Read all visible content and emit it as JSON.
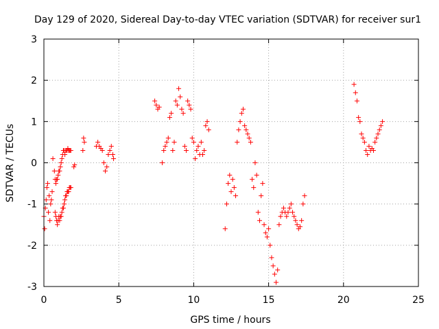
{
  "chart_data": {
    "type": "scatter",
    "title": "Day 129 of 2020, Sidereal Day-to-day VTEC variation (SDTVAR) for receiver sur1",
    "xlabel": "GPS time / hours",
    "ylabel": "SDTVAR / TECUs",
    "xlim": [
      0,
      25
    ],
    "ylim": [
      -3,
      3
    ],
    "xticks": [
      0,
      5,
      10,
      15,
      20,
      25
    ],
    "yticks": [
      -3,
      -2,
      -1,
      0,
      1,
      2,
      3
    ],
    "xtick_labels": [
      "0",
      "5",
      "10",
      "15",
      "20",
      "25"
    ],
    "ytick_labels": [
      "-3",
      "-2",
      "-1",
      "0",
      "1",
      "2",
      "3"
    ],
    "grid": true,
    "marker": "plus",
    "color": "#ff0000",
    "series": [
      {
        "name": "sur1",
        "x": [
          0.0,
          0.05,
          0.1,
          0.15,
          0.2,
          0.25,
          0.3,
          0.35,
          0.4,
          0.45,
          0.5,
          0.55,
          0.6,
          0.7,
          0.75,
          0.8,
          0.85,
          0.9,
          0.95,
          1.0,
          1.05,
          1.1,
          1.15,
          1.2,
          1.25,
          1.3,
          1.35,
          1.4,
          1.45,
          1.5,
          1.55,
          1.6,
          1.65,
          1.7,
          1.75,
          1.8,
          0.75,
          0.8,
          0.85,
          0.9,
          0.95,
          1.0,
          1.05,
          1.1,
          1.15,
          1.2,
          1.25,
          1.3,
          1.35,
          1.4,
          1.45,
          1.5,
          1.55,
          1.6,
          1.65,
          1.7,
          1.75,
          1.8,
          2.0,
          2.05,
          2.6,
          2.65,
          2.7,
          3.5,
          3.6,
          3.7,
          3.8,
          3.9,
          4.0,
          4.1,
          4.2,
          4.3,
          4.4,
          4.5,
          4.6,
          4.65,
          7.4,
          7.5,
          7.6,
          7.7,
          7.9,
          8.0,
          8.1,
          8.2,
          8.3,
          8.4,
          8.5,
          8.6,
          8.7,
          8.8,
          8.9,
          9.0,
          9.1,
          9.2,
          9.3,
          9.4,
          9.5,
          9.6,
          9.7,
          9.8,
          9.9,
          10.0,
          10.1,
          10.2,
          10.3,
          10.4,
          10.5,
          10.6,
          10.7,
          10.8,
          10.9,
          11.0,
          12.1,
          12.2,
          12.3,
          12.4,
          12.5,
          12.6,
          12.7,
          12.8,
          12.9,
          13.0,
          13.1,
          13.2,
          13.3,
          13.4,
          13.5,
          13.6,
          13.7,
          13.8,
          13.9,
          14.0,
          14.1,
          14.2,
          14.3,
          14.4,
          14.5,
          14.6,
          14.7,
          14.8,
          14.9,
          15.0,
          15.1,
          15.2,
          15.3,
          15.4,
          15.5,
          15.6,
          15.7,
          15.8,
          15.9,
          16.0,
          16.1,
          16.2,
          16.3,
          16.4,
          16.5,
          16.6,
          16.7,
          16.8,
          16.9,
          17.0,
          17.1,
          17.2,
          17.3,
          17.4,
          20.7,
          20.8,
          20.9,
          21.0,
          21.1,
          21.2,
          21.3,
          21.4,
          21.5,
          21.6,
          21.7,
          21.8,
          21.9,
          22.0,
          22.1,
          22.2,
          22.3,
          22.4,
          22.5,
          22.6
        ],
        "y": [
          -1.3,
          -1.6,
          -1.1,
          -0.9,
          -0.6,
          -0.5,
          -1.2,
          -0.8,
          -1.4,
          -1.0,
          -0.9,
          -0.7,
          0.1,
          -0.2,
          -0.4,
          -0.5,
          -0.4,
          -0.4,
          -0.3,
          -0.2,
          -0.2,
          -0.1,
          0.0,
          0.1,
          0.2,
          0.3,
          0.3,
          0.2,
          0.3,
          0.3,
          0.3,
          0.35,
          0.3,
          0.3,
          0.3,
          0.3,
          -1.2,
          -1.3,
          -1.4,
          -1.5,
          -1.4,
          -1.3,
          -1.4,
          -1.3,
          -1.3,
          -1.2,
          -1.1,
          -1.1,
          -1.0,
          -0.9,
          -0.8,
          -0.8,
          -0.7,
          -0.7,
          -0.7,
          -0.6,
          -0.6,
          -0.6,
          -0.1,
          -0.05,
          0.3,
          0.6,
          0.5,
          0.4,
          0.5,
          0.4,
          0.35,
          0.3,
          0.0,
          -0.2,
          -0.1,
          0.2,
          0.3,
          0.4,
          0.2,
          0.1,
          1.5,
          1.4,
          1.3,
          1.35,
          0.0,
          0.3,
          0.4,
          0.5,
          0.6,
          1.1,
          1.2,
          0.3,
          0.5,
          1.5,
          1.4,
          1.8,
          1.6,
          1.3,
          1.2,
          0.4,
          0.3,
          1.5,
          1.4,
          1.3,
          0.6,
          0.5,
          0.1,
          0.3,
          0.4,
          0.2,
          0.5,
          0.2,
          0.3,
          0.9,
          1.0,
          0.8,
          -1.6,
          -1.0,
          -0.5,
          -0.3,
          -0.7,
          -0.4,
          -0.6,
          -0.8,
          0.5,
          0.8,
          1.0,
          1.2,
          1.3,
          0.9,
          0.8,
          0.7,
          0.6,
          0.5,
          -0.4,
          -0.6,
          0.0,
          -0.3,
          -1.2,
          -1.4,
          -0.8,
          -0.5,
          -1.5,
          -1.7,
          -1.8,
          -1.6,
          -2.0,
          -2.3,
          -2.5,
          -2.7,
          -2.9,
          -2.6,
          -1.5,
          -1.3,
          -1.2,
          -1.1,
          -1.2,
          -1.3,
          -1.2,
          -1.1,
          -1.0,
          -1.2,
          -1.3,
          -1.4,
          -1.5,
          -1.6,
          -1.55,
          -1.4,
          -1.0,
          -0.8,
          1.9,
          1.7,
          1.5,
          1.1,
          1.0,
          0.7,
          0.6,
          0.5,
          0.3,
          0.2,
          0.4,
          0.3,
          0.35,
          0.3,
          0.5,
          0.6,
          0.7,
          0.8,
          0.9,
          1.0
        ]
      }
    ]
  }
}
